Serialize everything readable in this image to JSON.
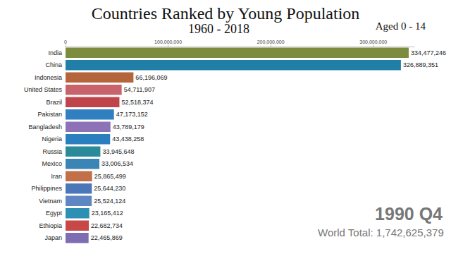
{
  "chart_data": {
    "type": "bar",
    "orientation": "horizontal",
    "title": "Countries Ranked by Young Population",
    "subtitle": "1960 - 2018",
    "annotations": [
      "Aged 0 - 14",
      "1990 Q4",
      "World Total: 1,742,625,379"
    ],
    "categories": [
      "India",
      "China",
      "Indonesia",
      "United States",
      "Brazil",
      "Pakistan",
      "Bangladesh",
      "Nigeria",
      "Russia",
      "Mexico",
      "Iran",
      "Philippines",
      "Vietnam",
      "Egypt",
      "Ethiopia",
      "Japan"
    ],
    "values": [
      334477246,
      326889351,
      66196069,
      54711907,
      52518374,
      47173152,
      43789179,
      43438258,
      33945648,
      33006534,
      25865499,
      25644230,
      25524124,
      23165412,
      22682734,
      22465869
    ],
    "value_labels": [
      "334,477,246",
      "326,889,351",
      "66,196,069",
      "54,711,907",
      "52,518,374",
      "47,173,152",
      "43,789,179",
      "43,438,258",
      "33,945,648",
      "33,006,534",
      "25,865,499",
      "25,644,230",
      "25,524,124",
      "23,165,412",
      "22,682,734",
      "22,465,869"
    ],
    "colors": [
      "#7b8c3f",
      "#1f7fa6",
      "#b5653c",
      "#c9636b",
      "#c0454a",
      "#2f7fc1",
      "#8e72b8",
      "#2c7fbf",
      "#2b8a9a",
      "#3a85b5",
      "#c2704a",
      "#4b77b8",
      "#5e86c2",
      "#2d8fb3",
      "#c84848",
      "#7f6db3"
    ],
    "data_labels": true,
    "xlim": [
      0,
      340000000
    ],
    "xticks": [
      0,
      {
        "value": 100000000,
        "label": "100,000,000"
      },
      {
        "value": 200000000,
        "label": "200,000,000"
      },
      {
        "value": 300000000,
        "label": "300,000,000"
      }
    ],
    "grid": false
  }
}
